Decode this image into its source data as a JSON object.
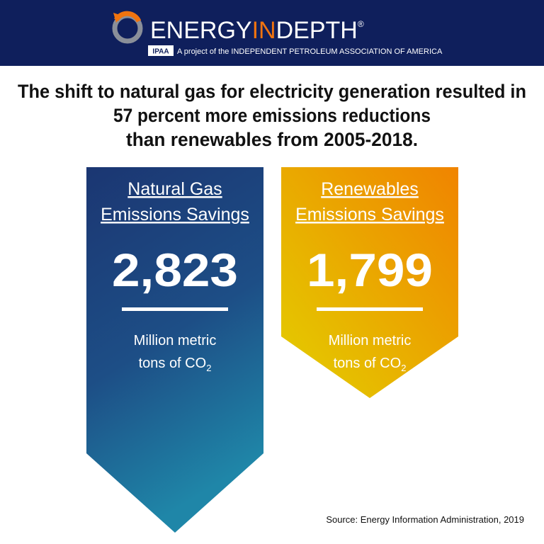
{
  "header": {
    "brand": [
      "ENERGY",
      "IN",
      "DEPTH"
    ],
    "registered": "®",
    "badge": "IPAA",
    "tagline": "A project of the INDEPENDENT PETROLEUM ASSOCIATION OF AMERICA"
  },
  "headline": [
    "The shift to natural gas for electricity generation resulted in",
    "57 percent more emissions reductions",
    "than renewables from 2005-2018."
  ],
  "panels": [
    {
      "title": [
        "Natural Gas",
        "Emissions Savings"
      ],
      "value": "2,823",
      "unit": [
        "Million metric",
        "tons of CO"
      ],
      "unit_subscript": "2"
    },
    {
      "title": [
        "Renewables",
        "Emissions Savings"
      ],
      "value": "1,799",
      "unit": [
        "Million metric",
        "tons of CO"
      ],
      "unit_subscript": "2"
    }
  ],
  "source": "Source: Energy Information Administration, 2019"
}
